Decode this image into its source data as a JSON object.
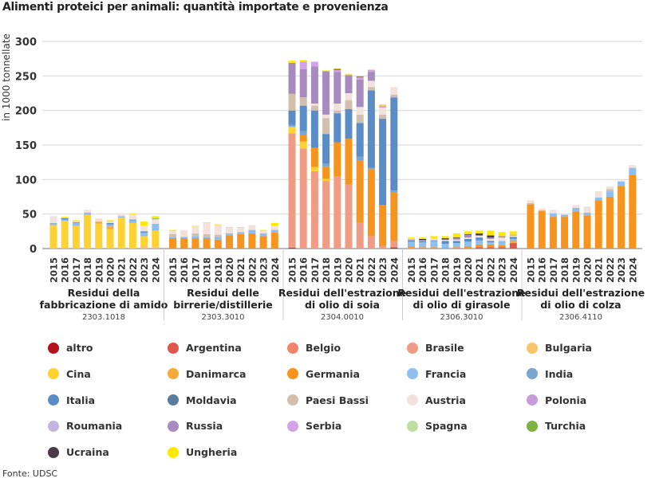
{
  "title": "Alimenti proteici per animali: quantità importate e provenienza",
  "source": "Fonte: UDSC",
  "chart_data": {
    "type": "bar",
    "stacked": true,
    "ylabel": "in 1000 tonnellate",
    "ylim": [
      0,
      300
    ],
    "yticks": [
      0,
      50,
      100,
      150,
      200,
      250,
      300
    ],
    "grid": true,
    "legend_position": "bottom",
    "countries": [
      "altro",
      "Argentina",
      "Belgio",
      "Brasile",
      "Bulgaria",
      "Cina",
      "Danimarca",
      "Germania",
      "Francia",
      "India",
      "Italia",
      "Moldavia",
      "Paesi Bassi",
      "Austria",
      "Polonia",
      "Roumania",
      "Russia",
      "Serbia",
      "Spagna",
      "Turchia",
      "Ucraina",
      "Ungheria"
    ],
    "colors": {
      "altro": "#b3121c",
      "Argentina": "#e0574c",
      "Belgio": "#f3856b",
      "Brasile": "#f09c85",
      "Bulgaria": "#f8c46c",
      "Cina": "#fdd232",
      "Danimarca": "#f7a93a",
      "Germania": "#f7941d",
      "Francia": "#8fbff0",
      "India": "#79a6cf",
      "Italia": "#5a8cc7",
      "Moldavia": "#587d9e",
      "Paesi Bassi": "#d2bfae",
      "Austria": "#f3e1dc",
      "Polonia": "#c79cdc",
      "Roumania": "#c4b4e0",
      "Russia": "#a78bbf",
      "Serbia": "#d3a2e8",
      "Spagna": "#bde0a2",
      "Turchia": "#7db343",
      "Ucraina": "#4a3b4a",
      "Ungheria": "#ffe800"
    },
    "groups": [
      {
        "name": "Residui della fabbricazione di amido",
        "code": "2303.1018",
        "bars": [
          {
            "year": "2015",
            "segments": {
              "Cina": 34,
              "Francia": 2,
              "India": 1,
              "Austria": 10
            }
          },
          {
            "year": "2016",
            "segments": {
              "Bulgaria": 1,
              "Cina": 39,
              "Francia": 2,
              "Italia": 2,
              "Ungheria": 2
            }
          },
          {
            "year": "2017",
            "segments": {
              "Cina": 33,
              "Francia": 4,
              "Italia": 1,
              "Austria": 1,
              "Ungheria": 2
            }
          },
          {
            "year": "2018",
            "segments": {
              "Cina": 49,
              "Francia": 3,
              "Austria": 4
            }
          },
          {
            "year": "2019",
            "segments": {
              "Cina": 36,
              "Danimarca": 3,
              "Austria": 5
            }
          },
          {
            "year": "2020",
            "segments": {
              "Cina": 28,
              "Danimarca": 4,
              "Francia": 3,
              "Italia": 2,
              "Austria": 2,
              "Ungheria": 2
            }
          },
          {
            "year": "2021",
            "segments": {
              "Cina": 45,
              "Francia": 2,
              "Austria": 3
            }
          },
          {
            "year": "2022",
            "segments": {
              "Cina": 37,
              "Francia": 4,
              "Italia": 1,
              "Austria": 8,
              "Ungheria": 1
            }
          },
          {
            "year": "2023",
            "segments": {
              "Bulgaria": 4,
              "Cina": 14,
              "Francia": 5,
              "Italia": 2,
              "Austria": 8,
              "Ungheria": 6
            }
          },
          {
            "year": "2024",
            "segments": {
              "Bulgaria": 3,
              "Cina": 23,
              "Francia": 10,
              "Austria": 6,
              "Spagna": 1,
              "Turchia": 1,
              "Ungheria": 3
            }
          }
        ]
      },
      {
        "name": "Residui delle birrerie/distillerie",
        "code": "2303.3010",
        "bars": [
          {
            "year": "2015",
            "segments": {
              "Germania": 15,
              "Francia": 2,
              "Paesi Bassi": 4,
              "Austria": 5,
              "Ungheria": 1
            }
          },
          {
            "year": "2016",
            "segments": {
              "Germania": 15,
              "Francia": 2,
              "Austria": 10
            }
          },
          {
            "year": "2017",
            "segments": {
              "Germania": 15,
              "Francia": 3,
              "Paesi Bassi": 4,
              "Austria": 10,
              "Ungheria": 1
            }
          },
          {
            "year": "2018",
            "segments": {
              "Germania": 15,
              "Francia": 2,
              "Paesi Bassi": 4,
              "Austria": 16,
              "Ungheria": 1
            }
          },
          {
            "year": "2019",
            "segments": {
              "Germania": 13,
              "Francia": 4,
              "Paesi Bassi": 3,
              "Austria": 14,
              "Ungheria": 1
            }
          },
          {
            "year": "2020",
            "segments": {
              "Germania": 19,
              "Francia": 3,
              "Austria": 8,
              "Ungheria": 1
            }
          },
          {
            "year": "2021",
            "segments": {
              "Germania": 21,
              "Francia": 3,
              "Austria": 6,
              "Ungheria": 1
            }
          },
          {
            "year": "2022",
            "segments": {
              "Germania": 22,
              "Francia": 5,
              "Austria": 7
            }
          },
          {
            "year": "2023",
            "segments": {
              "Germania": 18,
              "Francia": 4,
              "Austria": 4,
              "Ungheria": 1
            }
          },
          {
            "year": "2024",
            "segments": {
              "Germania": 23,
              "Francia": 4,
              "Austria": 6,
              "Ungheria": 4
            }
          }
        ]
      },
      {
        "name": "Residui dell'estrazione di olio di soia",
        "code": "2304.0010",
        "bars": [
          {
            "year": "2015",
            "segments": {
              "altro": 1,
              "Brasile": 166,
              "Cina": 9,
              "Francia": 1,
              "India": 2,
              "Italia": 21,
              "Paesi Bassi": 24,
              "Russia": 45,
              "Ungheria": 3
            }
          },
          {
            "year": "2016",
            "segments": {
              "Brasile": 145,
              "Cina": 10,
              "Germania": 10,
              "India": 5,
              "Italia": 37,
              "Paesi Bassi": 12,
              "Russia": 41,
              "Serbia": 11,
              "Ungheria": 2
            }
          },
          {
            "year": "2017",
            "segments": {
              "Brasile": 112,
              "Cina": 6,
              "Germania": 28,
              "Italia": 54,
              "Austria": 3,
              "Paesi Bassi": 7,
              "Russia": 54,
              "Serbia": 6,
              "Ungheria": 1
            }
          },
          {
            "year": "2018",
            "segments": {
              "Brasile": 98,
              "Cina": 3,
              "Germania": 18,
              "India": 4,
              "Italia": 43,
              "Paesi Bassi": 23,
              "Austria": 5,
              "Russia": 63,
              "Ungheria": 1
            }
          },
          {
            "year": "2019",
            "segments": {
              "Brasile": 105,
              "Germania": 49,
              "Italia": 42,
              "Paesi Bassi": 4,
              "Austria": 10,
              "Russia": 46,
              "Serbia": 3,
              "Ucraina": 1,
              "Ungheria": 1
            }
          },
          {
            "year": "2020",
            "segments": {
              "Brasile": 93,
              "Germania": 66,
              "Italia": 43,
              "Paesi Bassi": 13,
              "Austria": 10,
              "Russia": 26,
              "Ungheria": 2
            }
          },
          {
            "year": "2021",
            "segments": {
              "Brasile": 38,
              "Germania": 89,
              "India": 6,
              "Italia": 49,
              "Paesi Bassi": 12,
              "Austria": 11,
              "Russia": 40,
              "Serbia": 3,
              "Ucraina": 1,
              "Ungheria": 1
            }
          },
          {
            "year": "2022",
            "segments": {
              "Brasile": 18,
              "Germania": 97,
              "India": 2,
              "Italia": 112,
              "Paesi Bassi": 5,
              "Austria": 9,
              "Russia": 13,
              "Serbia": 3
            }
          },
          {
            "year": "2023",
            "segments": {
              "Brasile": 4,
              "Germania": 59,
              "Italia": 125,
              "Paesi Bassi": 6,
              "Austria": 10,
              "Serbia": 3,
              "Ungheria": 2
            }
          },
          {
            "year": "2024",
            "segments": {
              "altro": 1,
              "Brasile": 9,
              "Germania": 70,
              "India": 3,
              "Italia": 135,
              "Paesi Bassi": 4,
              "Austria": 11,
              "Argentina": 1
            }
          }
        ]
      },
      {
        "name": "Residui dell'estrazione di olio di girasole",
        "code": "2306.3010",
        "bars": [
          {
            "year": "2015",
            "segments": {
              "Brasile": 1,
              "Germania": 2,
              "Francia": 7,
              "Italia": 2,
              "Paesi Bassi": 2,
              "Austria": 1,
              "Ungheria": 1
            }
          },
          {
            "year": "2016",
            "segments": {
              "Germania": 2,
              "Francia": 7,
              "Italia": 2,
              "Ucraina": 2,
              "Austria": 1,
              "Ungheria": 2
            }
          },
          {
            "year": "2017",
            "segments": {
              "Germania": 2,
              "Francia": 9,
              "Italia": 1,
              "Austria": 2,
              "Ungheria": 4
            }
          },
          {
            "year": "2018",
            "segments": {
              "Germania": 1,
              "Francia": 6,
              "Italia": 4,
              "Austria": 2,
              "Ucraina": 2,
              "Ungheria": 3
            }
          },
          {
            "year": "2019",
            "segments": {
              "Germania": 2,
              "Francia": 6,
              "Italia": 3,
              "Austria": 2,
              "Russia": 2,
              "Ucraina": 1,
              "Ungheria": 6
            }
          },
          {
            "year": "2020",
            "segments": {
              "Germania": 3,
              "Francia": 7,
              "Italia": 4,
              "Austria": 2,
              "Russia": 4,
              "Ucraina": 1,
              "Ungheria": 4
            }
          },
          {
            "year": "2021",
            "segments": {
              "Argentina": 2,
              "Germania": 4,
              "Francia": 6,
              "Italia": 4,
              "Austria": 3,
              "Ucraina": 3,
              "Ungheria": 4
            }
          },
          {
            "year": "2022",
            "segments": {
              "Argentina": 2,
              "Germania": 4,
              "Francia": 3,
              "Italia": 2,
              "Austria": 3,
              "Russia": 2,
              "Ucraina": 3,
              "Ungheria": 7
            }
          },
          {
            "year": "2023",
            "segments": {
              "Argentina": 2,
              "Germania": 3,
              "Francia": 6,
              "Austria": 5,
              "Russia": 2,
              "Ungheria": 6
            }
          },
          {
            "year": "2024",
            "segments": {
              "Argentina": 8,
              "Danimarca": 2,
              "Germania": 1,
              "Francia": 3,
              "Italia": 3,
              "Austria": 2,
              "Russia": 1,
              "Ungheria": 5
            }
          }
        ]
      },
      {
        "name": "Residui dell'estrazione di olio di colza",
        "code": "2306.4110",
        "bars": [
          {
            "year": "2015",
            "segments": {
              "Germania": 64,
              "Paesi Bassi": 2,
              "Austria": 4
            }
          },
          {
            "year": "2016",
            "segments": {
              "Germania": 55,
              "Austria": 3
            }
          },
          {
            "year": "2017",
            "segments": {
              "Germania": 46,
              "Francia": 5,
              "Austria": 5
            }
          },
          {
            "year": "2018",
            "segments": {
              "Germania": 46,
              "Francia": 3,
              "Austria": 2
            }
          },
          {
            "year": "2019",
            "segments": {
              "Germania": 54,
              "Francia": 5,
              "Austria": 4
            }
          },
          {
            "year": "2020",
            "segments": {
              "Germania": 48,
              "Francia": 4,
              "Austria": 9
            }
          },
          {
            "year": "2021",
            "segments": {
              "Germania": 70,
              "Francia": 4,
              "Austria": 9
            }
          },
          {
            "year": "2022",
            "segments": {
              "Germania": 75,
              "Francia": 8,
              "Paesi Bassi": 3,
              "Austria": 4
            }
          },
          {
            "year": "2023",
            "segments": {
              "Germania": 91,
              "Francia": 6,
              "Austria": 2
            }
          },
          {
            "year": "2024",
            "segments": {
              "Germania": 107,
              "Francia": 10,
              "Austria": 4
            }
          }
        ]
      }
    ]
  }
}
